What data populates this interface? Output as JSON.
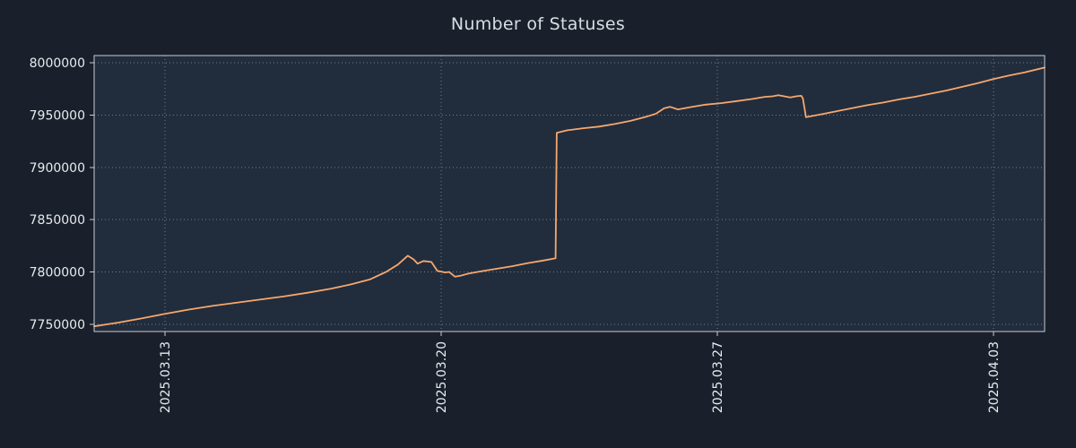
{
  "page": {
    "title_label": "Number of Statuses"
  },
  "chart_data": {
    "type": "line",
    "title": "Number of Statuses",
    "xlabel": "",
    "ylabel": "",
    "legend": "none",
    "grid": {
      "style": "dotted",
      "color": "rgba(255,255,255,0.38)"
    },
    "x_axis_note": "dates, ticks weekly, labels rotated 90deg",
    "x_domain": [
      0,
      24.1
    ],
    "y_domain": [
      7743000,
      8007000
    ],
    "x_ticks": [
      {
        "pos": 1.8,
        "label": "2025.03.13"
      },
      {
        "pos": 8.8,
        "label": "2025.03.20"
      },
      {
        "pos": 15.8,
        "label": "2025.03.27"
      },
      {
        "pos": 22.8,
        "label": "2025.04.03"
      }
    ],
    "y_ticks": [
      {
        "pos": 7750000,
        "label": "7750000"
      },
      {
        "pos": 7800000,
        "label": "7800000"
      },
      {
        "pos": 7850000,
        "label": "7850000"
      },
      {
        "pos": 7900000,
        "label": "7900000"
      },
      {
        "pos": 7950000,
        "label": "7950000"
      },
      {
        "pos": 8000000,
        "label": "8000000"
      }
    ],
    "colors": {
      "figure_bg": "#1a202b",
      "axes_bg": "#212d3d",
      "line": "#f7a76d",
      "text": "#e7eaee",
      "spine": "#c8ccd2",
      "title": "#d9dde3"
    },
    "series": [
      {
        "name": "Number of Statuses",
        "color": "#f7a76d",
        "points": [
          [
            0,
            7748000
          ],
          [
            0.6,
            7751500
          ],
          [
            1.2,
            7755500
          ],
          [
            1.8,
            7760000
          ],
          [
            2.4,
            7764000
          ],
          [
            3.0,
            7767500
          ],
          [
            3.6,
            7770500
          ],
          [
            4.2,
            7773500
          ],
          [
            4.8,
            7776500
          ],
          [
            5.4,
            7780000
          ],
          [
            6.0,
            7784000
          ],
          [
            6.5,
            7788000
          ],
          [
            7.0,
            7793000
          ],
          [
            7.4,
            7800000
          ],
          [
            7.7,
            7807000
          ],
          [
            7.95,
            7815500
          ],
          [
            8.1,
            7812000
          ],
          [
            8.2,
            7808000
          ],
          [
            8.35,
            7810500
          ],
          [
            8.55,
            7809500
          ],
          [
            8.7,
            7801000
          ],
          [
            8.9,
            7799500
          ],
          [
            9.0,
            7800000
          ],
          [
            9.15,
            7795500
          ],
          [
            9.3,
            7796500
          ],
          [
            9.5,
            7798500
          ],
          [
            9.8,
            7800500
          ],
          [
            10.2,
            7803000
          ],
          [
            10.6,
            7805500
          ],
          [
            11.0,
            7808500
          ],
          [
            11.4,
            7811000
          ],
          [
            11.7,
            7813000
          ],
          [
            11.73,
            7933000
          ],
          [
            12.0,
            7935500
          ],
          [
            12.4,
            7937500
          ],
          [
            12.8,
            7939000
          ],
          [
            13.2,
            7941500
          ],
          [
            13.6,
            7944500
          ],
          [
            14.0,
            7948500
          ],
          [
            14.25,
            7951500
          ],
          [
            14.45,
            7956500
          ],
          [
            14.6,
            7958000
          ],
          [
            14.8,
            7955500
          ],
          [
            15.1,
            7957500
          ],
          [
            15.5,
            7960000
          ],
          [
            15.9,
            7961500
          ],
          [
            16.3,
            7963500
          ],
          [
            16.7,
            7965500
          ],
          [
            17.0,
            7967500
          ],
          [
            17.2,
            7968000
          ],
          [
            17.35,
            7969000
          ],
          [
            17.5,
            7968000
          ],
          [
            17.65,
            7967000
          ],
          [
            17.8,
            7968000
          ],
          [
            17.93,
            7968500
          ],
          [
            17.97,
            7966000
          ],
          [
            18.05,
            7948000
          ],
          [
            18.4,
            7950500
          ],
          [
            18.8,
            7953500
          ],
          [
            19.2,
            7956500
          ],
          [
            19.6,
            7959500
          ],
          [
            20.0,
            7962000
          ],
          [
            20.4,
            7965000
          ],
          [
            20.8,
            7967500
          ],
          [
            21.2,
            7970500
          ],
          [
            21.6,
            7973500
          ],
          [
            22.0,
            7977000
          ],
          [
            22.4,
            7980500
          ],
          [
            22.8,
            7984500
          ],
          [
            23.2,
            7988000
          ],
          [
            23.6,
            7991000
          ],
          [
            24.1,
            7995500
          ]
        ]
      }
    ]
  }
}
